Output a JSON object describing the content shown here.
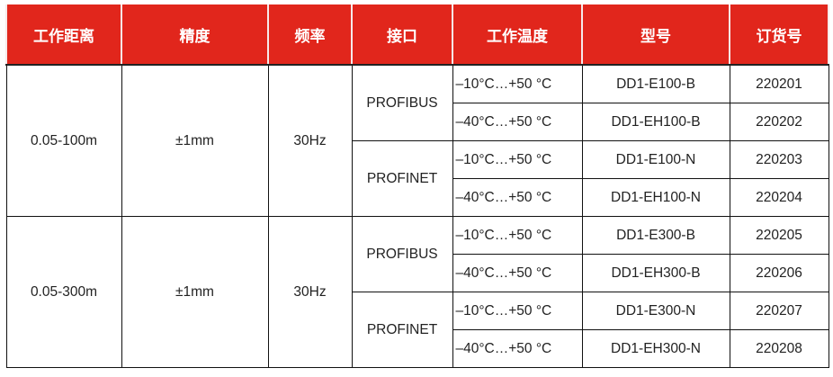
{
  "colors": {
    "header_bg": "#e1261c",
    "header_text": "#ffffff"
  },
  "headers": [
    "工作距离",
    "精度",
    "频率",
    "接口",
    "工作温度",
    "型号",
    "订货号"
  ],
  "groups": [
    {
      "distance": "0.05-100m",
      "accuracy": "±1mm",
      "frequency": "30Hz",
      "interfaces": [
        {
          "name": "PROFIBUS",
          "rows": [
            {
              "temp": "–10°C…+50 °C",
              "model": "DD1-E100-B",
              "order": "220201"
            },
            {
              "temp": "–40°C…+50 °C",
              "model": "DD1-EH100-B",
              "order": "220202"
            }
          ]
        },
        {
          "name": "PROFINET",
          "rows": [
            {
              "temp": "–10°C…+50 °C",
              "model": "DD1-E100-N",
              "order": "220203"
            },
            {
              "temp": "–40°C…+50 °C",
              "model": "DD1-EH100-N",
              "order": "220204"
            }
          ]
        }
      ]
    },
    {
      "distance": "0.05-300m",
      "accuracy": "±1mm",
      "frequency": "30Hz",
      "interfaces": [
        {
          "name": "PROFIBUS",
          "rows": [
            {
              "temp": "–10°C…+50 °C",
              "model": "DD1-E300-B",
              "order": "220205"
            },
            {
              "temp": "–40°C…+50 °C",
              "model": "DD1-EH300-B",
              "order": "220206"
            }
          ]
        },
        {
          "name": "PROFINET",
          "rows": [
            {
              "temp": "–10°C…+50 °C",
              "model": "DD1-E300-N",
              "order": "220207"
            },
            {
              "temp": "–40°C…+50 °C",
              "model": "DD1-EH300-N",
              "order": "220208"
            }
          ]
        }
      ]
    }
  ]
}
